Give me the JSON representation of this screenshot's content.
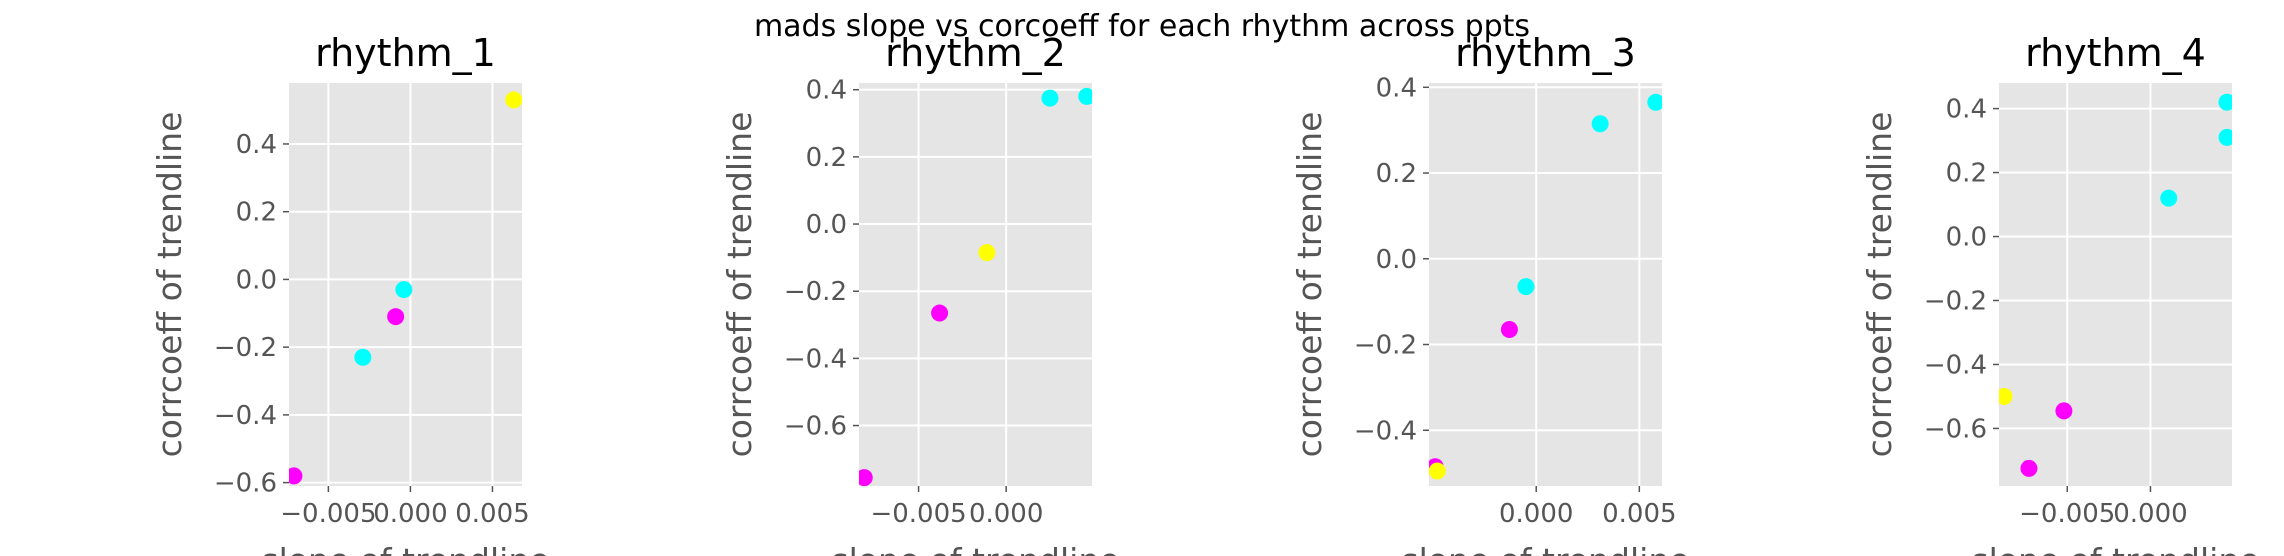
{
  "figure": {
    "suptitle": "mads slope vs corcoeff for each rhythm across ppts"
  },
  "chart_data": [
    {
      "type": "scatter",
      "title": "rhythm_1",
      "xlabel": "slope of trendline",
      "ylabel": "corrcoeff of trendline",
      "xlim": [
        -0.0074,
        0.0068
      ],
      "ylim": [
        -0.61,
        0.58
      ],
      "xticks": [
        {
          "v": -0.005,
          "label": "−0.005"
        },
        {
          "v": 0.0,
          "label": "0.000"
        },
        {
          "v": 0.005,
          "label": "0.005"
        }
      ],
      "yticks": [
        {
          "v": -0.6,
          "label": "−0.6"
        },
        {
          "v": -0.4,
          "label": "−0.4"
        },
        {
          "v": -0.2,
          "label": "−0.2"
        },
        {
          "v": 0.0,
          "label": "0.0"
        },
        {
          "v": 0.2,
          "label": "0.2"
        },
        {
          "v": 0.4,
          "label": "0.4"
        }
      ],
      "grid": true,
      "points": [
        {
          "x": 0.0063,
          "y": 0.53,
          "color": "#ffff00"
        },
        {
          "x": -0.0004,
          "y": -0.03,
          "color": "#00ffff"
        },
        {
          "x": -0.0009,
          "y": -0.11,
          "color": "#ff00ff"
        },
        {
          "x": -0.0029,
          "y": -0.23,
          "color": "#00ffff"
        },
        {
          "x": -0.0071,
          "y": -0.58,
          "color": "#ff00ff"
        }
      ]
    },
    {
      "type": "scatter",
      "title": "rhythm_2",
      "xlabel": "slope of trendline",
      "ylabel": "corrcoeff of trendline",
      "xlim": [
        -0.0084,
        0.0049
      ],
      "ylim": [
        -0.78,
        0.42
      ],
      "xticks": [
        {
          "v": -0.005,
          "label": "−0.005"
        },
        {
          "v": 0.0,
          "label": "0.000"
        }
      ],
      "yticks": [
        {
          "v": -0.6,
          "label": "−0.6"
        },
        {
          "v": -0.4,
          "label": "−0.4"
        },
        {
          "v": -0.2,
          "label": "−0.2"
        },
        {
          "v": 0.0,
          "label": "0.0"
        },
        {
          "v": 0.2,
          "label": "0.2"
        },
        {
          "v": 0.4,
          "label": "0.4"
        }
      ],
      "grid": true,
      "points": [
        {
          "x": 0.0046,
          "y": 0.38,
          "color": "#00ffff"
        },
        {
          "x": 0.0025,
          "y": 0.375,
          "color": "#00ffff"
        },
        {
          "x": -0.0011,
          "y": -0.085,
          "color": "#ffff00"
        },
        {
          "x": -0.0038,
          "y": -0.265,
          "color": "#ff00ff"
        },
        {
          "x": -0.0081,
          "y": -0.755,
          "color": "#ff00ff"
        }
      ]
    },
    {
      "type": "scatter",
      "title": "rhythm_3",
      "xlabel": "slope of trendline",
      "ylabel": "corrcoeff of trendline",
      "xlim": [
        -0.0052,
        0.0061
      ],
      "ylim": [
        -0.53,
        0.41
      ],
      "xticks": [
        {
          "v": 0.0,
          "label": "0.000"
        },
        {
          "v": 0.005,
          "label": "0.005"
        }
      ],
      "yticks": [
        {
          "v": -0.4,
          "label": "−0.4"
        },
        {
          "v": -0.2,
          "label": "−0.2"
        },
        {
          "v": 0.0,
          "label": "0.0"
        },
        {
          "v": 0.2,
          "label": "0.2"
        },
        {
          "v": 0.4,
          "label": "0.4"
        }
      ],
      "grid": true,
      "points": [
        {
          "x": 0.0058,
          "y": 0.365,
          "color": "#00ffff"
        },
        {
          "x": 0.0031,
          "y": 0.315,
          "color": "#00ffff"
        },
        {
          "x": -0.0005,
          "y": -0.065,
          "color": "#00ffff"
        },
        {
          "x": -0.0013,
          "y": -0.165,
          "color": "#ff00ff"
        },
        {
          "x": -0.0049,
          "y": -0.485,
          "color": "#ff00ff"
        },
        {
          "x": -0.0048,
          "y": -0.495,
          "color": "#ffff00"
        }
      ]
    },
    {
      "type": "scatter",
      "title": "rhythm_4",
      "xlabel": "slope of trendline",
      "ylabel": "corrcoeff of trendline",
      "xlim": [
        -0.0091,
        0.0049
      ],
      "ylim": [
        -0.78,
        0.48
      ],
      "xticks": [
        {
          "v": -0.005,
          "label": "−0.005"
        },
        {
          "v": 0.0,
          "label": "0.000"
        }
      ],
      "yticks": [
        {
          "v": -0.6,
          "label": "−0.6"
        },
        {
          "v": -0.4,
          "label": "−0.4"
        },
        {
          "v": -0.2,
          "label": "−0.2"
        },
        {
          "v": 0.0,
          "label": "0.0"
        },
        {
          "v": 0.2,
          "label": "0.2"
        },
        {
          "v": 0.4,
          "label": "0.4"
        }
      ],
      "grid": true,
      "points": [
        {
          "x": 0.0046,
          "y": 0.42,
          "color": "#00ffff"
        },
        {
          "x": 0.0046,
          "y": 0.31,
          "color": "#00ffff"
        },
        {
          "x": 0.0011,
          "y": 0.12,
          "color": "#00ffff"
        },
        {
          "x": -0.0088,
          "y": -0.5,
          "color": "#ffff00"
        },
        {
          "x": -0.0052,
          "y": -0.545,
          "color": "#ff00ff"
        },
        {
          "x": -0.0073,
          "y": -0.725,
          "color": "#ff00ff"
        }
      ]
    }
  ]
}
